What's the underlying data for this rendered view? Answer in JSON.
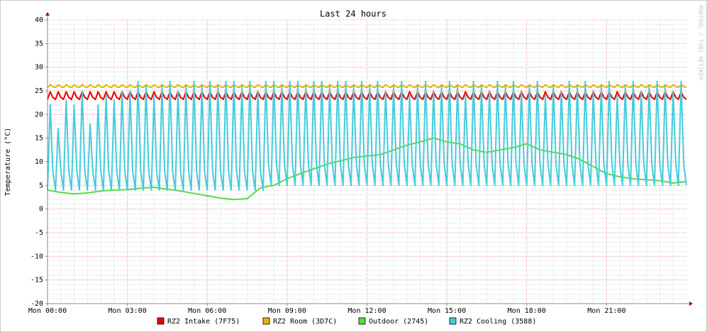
{
  "chart_data": {
    "type": "line",
    "title": "Last 24 hours",
    "y_label": "Temperature (°C)",
    "watermark": "RRDTOOL / TOBI OETIKER",
    "xlim": [
      0,
      24
    ],
    "ylim": [
      -20,
      40
    ],
    "yticks": [
      -20,
      -15,
      -10,
      -5,
      0,
      5,
      10,
      15,
      20,
      25,
      30,
      35,
      40
    ],
    "xticks": [
      {
        "value": 0,
        "label": "Mon 00:00"
      },
      {
        "value": 3,
        "label": "Mon 03:00"
      },
      {
        "value": 6,
        "label": "Mon 06:00"
      },
      {
        "value": 9,
        "label": "Mon 09:00"
      },
      {
        "value": 12,
        "label": "Mon 12:00"
      },
      {
        "value": 15,
        "label": "Mon 15:00"
      },
      {
        "value": 18,
        "label": "Mon 18:00"
      },
      {
        "value": 21,
        "label": "Mon 21:00"
      }
    ],
    "grid": true,
    "minor_grid": {
      "x_step": 0.5,
      "y_step": 1
    },
    "x": [
      0,
      0.1,
      0.2,
      0.3,
      0.4,
      0.5,
      0.6,
      0.7,
      0.8,
      0.9,
      1,
      1.1,
      1.2,
      1.3,
      1.4,
      1.5,
      1.6,
      1.7,
      1.8,
      1.9,
      2,
      2.1,
      2.2,
      2.3,
      2.4,
      2.5,
      2.6,
      2.7,
      2.8,
      2.9,
      3,
      3.1,
      3.2,
      3.3,
      3.4,
      3.5,
      3.6,
      3.7,
      3.8,
      3.9,
      4,
      4.1,
      4.2,
      4.3,
      4.4,
      4.5,
      4.6,
      4.7,
      4.8,
      4.9,
      5,
      5.1,
      5.2,
      5.3,
      5.4,
      5.5,
      5.6,
      5.7,
      5.8,
      5.9,
      6,
      6.1,
      6.2,
      6.3,
      6.4,
      6.5,
      6.6,
      6.7,
      6.8,
      6.9,
      7,
      7.1,
      7.2,
      7.3,
      7.4,
      7.5,
      7.6,
      7.7,
      7.8,
      7.9,
      8,
      8.1,
      8.2,
      8.3,
      8.4,
      8.5,
      8.6,
      8.7,
      8.8,
      8.9,
      9,
      9.1,
      9.2,
      9.3,
      9.4,
      9.5,
      9.6,
      9.7,
      9.8,
      9.9,
      10,
      10.1,
      10.2,
      10.3,
      10.4,
      10.5,
      10.6,
      10.7,
      10.8,
      10.9,
      11,
      11.1,
      11.2,
      11.3,
      11.4,
      11.5,
      11.6,
      11.7,
      11.8,
      11.9,
      12,
      12.1,
      12.2,
      12.3,
      12.4,
      12.5,
      12.6,
      12.7,
      12.8,
      12.9,
      13,
      13.1,
      13.2,
      13.3,
      13.4,
      13.5,
      13.6,
      13.7,
      13.8,
      13.9,
      14,
      14.1,
      14.2,
      14.3,
      14.4,
      14.5,
      14.6,
      14.7,
      14.8,
      14.9,
      15,
      15.1,
      15.2,
      15.3,
      15.4,
      15.5,
      15.6,
      15.7,
      15.8,
      15.9,
      16,
      16.1,
      16.2,
      16.3,
      16.4,
      16.5,
      16.6,
      16.7,
      16.8,
      16.9,
      17,
      17.1,
      17.2,
      17.3,
      17.4,
      17.5,
      17.6,
      17.7,
      17.8,
      17.9,
      18,
      18.1,
      18.2,
      18.3,
      18.4,
      18.5,
      18.6,
      18.7,
      18.8,
      18.9,
      19,
      19.1,
      19.2,
      19.3,
      19.4,
      19.5,
      19.6,
      19.7,
      19.8,
      19.9,
      20,
      20.1,
      20.2,
      20.3,
      20.4,
      20.5,
      20.6,
      20.7,
      20.8,
      20.9,
      21,
      21.1,
      21.2,
      21.3,
      21.4,
      21.5,
      21.6,
      21.7,
      21.8,
      21.9,
      22,
      22.1,
      22.2,
      22.3,
      22.4,
      22.5,
      22.6,
      22.7,
      22.8,
      22.9,
      23,
      23.1,
      23.2,
      23.3,
      23.4,
      23.5,
      23.6,
      23.7,
      23.8,
      23.9,
      24
    ],
    "series": [
      {
        "name": "RZ2 Intake (7F75)",
        "color": "#e80000",
        "values": [
          23.2,
          24.8,
          23.6,
          23.2,
          24.8,
          23.6,
          23.2,
          24.8,
          23.6,
          23.2,
          24.8,
          23.6,
          23.2,
          24.8,
          23.6,
          23.2,
          24.8,
          23.6,
          23.2,
          24.8,
          23.6,
          23.2,
          24.8,
          23.6,
          23.2,
          24.8,
          23.6,
          23.2,
          24.8,
          23.6,
          23.2,
          24.8,
          23.6,
          23.2,
          24.8,
          23.6,
          23.2,
          24.8,
          23.6,
          23.2,
          24.8,
          23.6,
          23.2,
          24.8,
          23.6,
          23.2,
          24.8,
          23.6,
          23.2,
          24.8,
          23.6,
          23.2,
          24.8,
          23.6,
          23.2,
          24.8,
          23.6,
          23.2,
          24.8,
          23.6,
          23.2,
          24.8,
          23.6,
          23.2,
          24.8,
          23.6,
          23.2,
          24.8,
          23.6,
          23.2,
          24.8,
          23.6,
          23.2,
          24.8,
          23.6,
          23.2,
          24.8,
          23.6,
          23.2,
          24.8,
          23.6,
          23.2,
          24.8,
          23.6,
          23.2,
          24.8,
          23.6,
          23.2,
          24.8,
          23.6,
          23.2,
          24.8,
          23.6,
          23.2,
          24.8,
          23.6,
          23.2,
          24.8,
          23.6,
          23.2,
          24.8,
          23.6,
          23.2,
          24.8,
          23.6,
          23.2,
          24.8,
          23.6,
          23.2,
          24.8,
          23.6,
          23.2,
          24.8,
          23.6,
          23.2,
          24.8,
          23.6,
          23.2,
          24.8,
          23.6,
          23.2,
          24.8,
          23.6,
          23.2,
          24.8,
          23.6,
          23.2,
          24.8,
          23.6,
          23.2,
          24.8,
          23.6,
          23.2,
          24.8,
          23.6,
          23.2,
          24.8,
          23.6,
          23.2,
          24.8,
          23.6,
          23.2,
          24.8,
          23.6,
          23.2,
          24.8,
          23.6,
          23.2,
          24.8,
          23.6,
          23.2,
          24.8,
          23.6,
          23.2,
          24.8,
          23.6,
          23.2,
          24.8,
          23.6,
          23.2,
          24.8,
          23.6,
          23.2,
          24.8,
          23.6,
          23.2,
          24.8,
          23.6,
          23.2,
          24.8,
          23.6,
          23.2,
          24.8,
          23.6,
          23.2,
          24.8,
          23.6,
          23.2,
          24.8,
          23.6,
          23.2,
          24.8,
          23.6,
          23.2,
          24.8,
          23.6,
          23.2,
          24.8,
          23.6,
          23.2,
          24.8,
          23.6,
          23.2,
          24.8,
          23.6,
          23.2,
          24.8,
          23.6,
          23.2,
          24.8,
          23.6,
          23.2,
          24.8,
          23.6,
          23.2,
          24.8,
          23.6,
          23.2,
          24.8,
          23.6,
          23.2,
          24.8,
          23.6,
          23.2,
          24.8,
          23.6,
          23.2,
          24.8,
          23.6,
          23.2,
          24.8,
          23.6,
          23.2,
          24.8,
          23.6,
          23.2,
          24.8,
          23.6,
          23.2,
          24.8,
          23.6,
          23.2,
          24.8,
          23.6,
          23.2,
          24.8,
          23.6,
          23.2,
          24.8,
          23.6,
          23.2
        ]
      },
      {
        "name": "RZ2 Room (3D7C)",
        "color": "#e8b400",
        "values": [
          25.7,
          26.3,
          25.9,
          25.7,
          26.3,
          25.9,
          25.7,
          26.3,
          25.9,
          25.7,
          26.3,
          25.9,
          25.7,
          26.3,
          25.9,
          25.7,
          26.3,
          25.9,
          25.7,
          26.3,
          25.9,
          25.7,
          26.3,
          25.9,
          25.7,
          26.3,
          25.9,
          25.7,
          26.3,
          25.9,
          25.7,
          26.3,
          25.9,
          25.7,
          26.3,
          25.9,
          25.7,
          26.3,
          25.9,
          25.7,
          26.3,
          25.9,
          25.7,
          26.3,
          25.9,
          25.7,
          26.3,
          25.9,
          25.7,
          26.3,
          25.9,
          25.7,
          26.3,
          25.9,
          25.7,
          26.3,
          25.9,
          25.7,
          26.3,
          25.9,
          25.7,
          26.3,
          25.9,
          25.7,
          26.3,
          25.9,
          25.7,
          26.3,
          25.9,
          25.7,
          26.3,
          25.9,
          25.7,
          26.3,
          25.9,
          25.7,
          26.3,
          25.9,
          25.7,
          26.3,
          25.9,
          25.7,
          26.3,
          25.9,
          25.7,
          26.3,
          25.9,
          25.7,
          26.3,
          25.9,
          25.7,
          26.3,
          25.9,
          25.7,
          26.3,
          25.9,
          25.7,
          26.3,
          25.9,
          25.7,
          26.3,
          25.9,
          25.7,
          26.3,
          25.9,
          25.7,
          26.3,
          25.9,
          25.7,
          26.3,
          25.9,
          25.7,
          26.3,
          25.9,
          25.7,
          26.3,
          25.9,
          25.7,
          26.3,
          25.9,
          25.7,
          26.3,
          25.9,
          25.7,
          26.3,
          25.9,
          25.7,
          26.3,
          25.9,
          25.7,
          26.3,
          25.9,
          25.7,
          26.3,
          25.9,
          25.7,
          26.3,
          25.9,
          25.7,
          26.3,
          25.9,
          25.7,
          26.3,
          25.9,
          25.7,
          26.3,
          25.9,
          25.7,
          26.3,
          25.9,
          25.7,
          26.3,
          25.9,
          25.7,
          26.3,
          25.9,
          25.7,
          26.3,
          25.9,
          25.7,
          26.3,
          25.9,
          25.7,
          26.3,
          25.9,
          25.7,
          26.3,
          25.9,
          25.7,
          26.3,
          25.9,
          25.7,
          26.3,
          25.9,
          25.7,
          26.3,
          25.9,
          25.7,
          26.3,
          25.9,
          25.7,
          26.3,
          25.9,
          25.7,
          26.3,
          25.9,
          25.7,
          26.3,
          25.9,
          25.7,
          26.3,
          25.9,
          25.7,
          26.3,
          25.9,
          25.7,
          26.3,
          25.9,
          25.7,
          26.3,
          25.9,
          25.7,
          26.3,
          25.9,
          25.7,
          26.3,
          25.9,
          25.7,
          26.3,
          25.9,
          25.7,
          26.3,
          25.9,
          25.7,
          26.3,
          25.9,
          25.7,
          26.3,
          25.9,
          25.7,
          26.3,
          25.9,
          25.7,
          26.3,
          25.9,
          25.7,
          26.3,
          25.9,
          25.7,
          26.3,
          25.9,
          25.7,
          26.3,
          25.9,
          25.7,
          26.3,
          25.9,
          25.7,
          26.3,
          25.9,
          25.7
        ]
      },
      {
        "name": "Outdoor (2745)",
        "color": "#55dd44",
        "x": [
          0,
          0.5,
          1,
          1.5,
          2,
          2.5,
          3,
          3.5,
          4,
          4.5,
          5,
          5.5,
          6,
          6.5,
          7,
          7.5,
          8,
          8.5,
          9,
          9.5,
          10,
          10.5,
          11,
          11.5,
          12,
          12.5,
          13,
          13.5,
          14,
          14.5,
          15,
          15.5,
          16,
          16.5,
          17,
          17.5,
          18,
          18.5,
          19,
          19.5,
          20,
          20.5,
          21,
          21.5,
          22,
          22.5,
          23,
          23.5,
          24
        ],
        "values": [
          4.0,
          3.5,
          3.2,
          3.4,
          3.8,
          4.0,
          4.1,
          4.4,
          4.6,
          4.2,
          3.8,
          3.3,
          2.8,
          2.3,
          2.0,
          2.2,
          4.5,
          5.0,
          6.4,
          7.5,
          8.5,
          9.5,
          10.2,
          10.9,
          11.2,
          11.5,
          12.5,
          13.5,
          14.2,
          15.0,
          14.2,
          13.8,
          12.5,
          12.0,
          12.5,
          13.0,
          13.8,
          12.5,
          12.0,
          11.5,
          10.5,
          9.0,
          7.5,
          6.8,
          6.4,
          6.2,
          6.0,
          5.5,
          5.8
        ]
      },
      {
        "name": "RZ2 Cooling (3588)",
        "color": "#44ccdd",
        "values": [
          4,
          22,
          8,
          4,
          17,
          8,
          4,
          23,
          8,
          4,
          22,
          8,
          4,
          25,
          8,
          4,
          18,
          8,
          4,
          22,
          8,
          4,
          24,
          8,
          4,
          23,
          8,
          4,
          25,
          8,
          4,
          25,
          8,
          4,
          27,
          8,
          4,
          26,
          8,
          4,
          24,
          8,
          4,
          26,
          8,
          4,
          27,
          8,
          4,
          25,
          8,
          4,
          26,
          8,
          4,
          27,
          8,
          4,
          26,
          8,
          4,
          27,
          8,
          4,
          26,
          8,
          4,
          27,
          8,
          4,
          27,
          8,
          4,
          26,
          8,
          4,
          27,
          8,
          4,
          25,
          8,
          4,
          27,
          9.5,
          5,
          27,
          9.5,
          5,
          26,
          9.5,
          5,
          27,
          9.5,
          5,
          27,
          9.5,
          5,
          26,
          9.5,
          5,
          27,
          9.5,
          5,
          27,
          9.5,
          5,
          26,
          9.5,
          5,
          27,
          9.5,
          5,
          27,
          9.5,
          5,
          26,
          9.5,
          5,
          27,
          9.5,
          5,
          26,
          9.5,
          5,
          27,
          9.5,
          5,
          25,
          9.5,
          5,
          26,
          9.5,
          5,
          27,
          9.5,
          5,
          24,
          9.5,
          5,
          26,
          9.5,
          5,
          27,
          9.5,
          5,
          25,
          9.5,
          5,
          26,
          9.5,
          5,
          27,
          9.5,
          5,
          26,
          9.5,
          5,
          24,
          9.5,
          5,
          27,
          9.5,
          5,
          26,
          9.5,
          5,
          25,
          9.5,
          5,
          27,
          9.5,
          5,
          26,
          9.5,
          5,
          27,
          9.5,
          5,
          25,
          9.5,
          5,
          26,
          9.5,
          5,
          27,
          9.5,
          5,
          24,
          9.5,
          5,
          26,
          9.5,
          5,
          25,
          9.5,
          5,
          27,
          9.5,
          5,
          26,
          9.5,
          5,
          27,
          9.5,
          5,
          25,
          9.5,
          5,
          26,
          9.5,
          5,
          27,
          9.5,
          5,
          24,
          9.5,
          5,
          26,
          9.5,
          5,
          27,
          9.5,
          5,
          25,
          9.5,
          5,
          26,
          9.5,
          5,
          27,
          9.5,
          5,
          26,
          9.5,
          5,
          25,
          9.5,
          5,
          27,
          9.5,
          5
        ]
      }
    ]
  }
}
